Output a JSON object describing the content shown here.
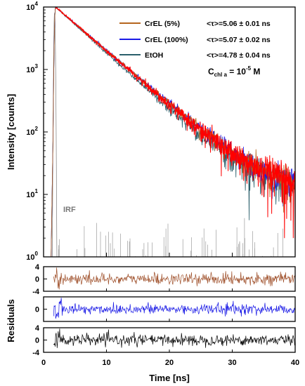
{
  "chart_data": [
    {
      "type": "line",
      "panel": "decay",
      "yscale": "log",
      "xlim": [
        0,
        40
      ],
      "ylim": [
        1,
        10000
      ],
      "ylabel": "Intensity [counts]",
      "xticks": [
        0,
        10,
        20,
        30,
        40
      ],
      "ytick_mantissa": "10",
      "ytick_exponents": [
        "0",
        "1",
        "2",
        "3",
        "4"
      ],
      "series": [
        {
          "name": "CrEL (5%)",
          "color": "#b5651d",
          "label_text": "<τ>=5.06 ± 0.01 ns",
          "tau_ns": 5.06
        },
        {
          "name": "CrEL (100%)",
          "color": "#1a1ae6",
          "label_text": "<τ>=5.07 ± 0.02 ns",
          "tau_ns": 5.07
        },
        {
          "name": "EtOH",
          "color": "#2a5f6b",
          "label_text": "<τ>=4.78 ± 0.04 ns",
          "tau_ns": 4.78
        }
      ],
      "fit_color": "#ff0000",
      "irf_label": "IRF",
      "irf_color": "#8c8c8c",
      "peak": {
        "x": 1.9,
        "y": 10000
      },
      "tail_floor": 10,
      "concentration": {
        "prefix": "C",
        "sub": "chl a",
        "value": " = 10",
        "exp": "-5",
        "unit": " M"
      }
    },
    {
      "type": "line",
      "panel": "residuals",
      "ylabel": "Residuals",
      "xlabel": "Time [ns]",
      "xlim": [
        0,
        40
      ],
      "xticks": [
        "0",
        "10",
        "20",
        "30",
        "40"
      ],
      "subplots": [
        {
          "series": "CrEL (5%)",
          "color": "#a0522d",
          "ylim": [
            -4,
            4
          ],
          "yticks": [
            "4",
            "0",
            "-4"
          ]
        },
        {
          "series": "CrEL (100%)",
          "color": "#1a1ae6",
          "ylim": [
            -4,
            4
          ],
          "yticks": [
            "0"
          ]
        },
        {
          "series": "EtOH",
          "color": "#000000",
          "ylim": [
            -4,
            4
          ],
          "yticks": [
            "4",
            "0",
            "-4"
          ]
        }
      ]
    }
  ]
}
